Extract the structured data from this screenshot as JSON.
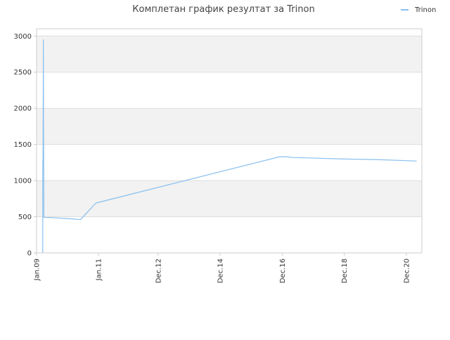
{
  "chart_data": {
    "type": "line",
    "title": "Комплетан график резултат за Trinon",
    "xlabel": "",
    "ylabel": "",
    "ylim": [
      0,
      3100
    ],
    "yticks": [
      0,
      500,
      1000,
      1500,
      2000,
      2500,
      3000
    ],
    "grid": true,
    "legend_position": "top-right",
    "x_axis": {
      "type": "date",
      "range": [
        "2009-01-01",
        "2021-06-01"
      ],
      "ticks": [
        {
          "date": "2009-01-01",
          "label": "Jan.09"
        },
        {
          "date": "2011-01-01",
          "label": "Jan.11"
        },
        {
          "date": "2012-12-01",
          "label": "Dec.12"
        },
        {
          "date": "2014-12-01",
          "label": "Dec.14"
        },
        {
          "date": "2016-12-01",
          "label": "Dec.16"
        },
        {
          "date": "2018-12-01",
          "label": "Dec.18"
        },
        {
          "date": "2020-12-01",
          "label": "Dec.20"
        }
      ]
    },
    "series": [
      {
        "name": "Trinon",
        "color": "#88bfee",
        "points": [
          {
            "x": "2009-03-15",
            "y": 0
          },
          {
            "x": "2009-03-15",
            "y": 1250
          },
          {
            "x": "2009-03-18",
            "y": 1280
          },
          {
            "x": "2009-03-20",
            "y": 2100
          },
          {
            "x": "2009-03-22",
            "y": 2950
          },
          {
            "x": "2009-03-24",
            "y": 1700
          },
          {
            "x": "2009-03-26",
            "y": 1300
          },
          {
            "x": "2009-03-28",
            "y": 490
          },
          {
            "x": "2009-06-01",
            "y": 490
          },
          {
            "x": "2010-03-01",
            "y": 470
          },
          {
            "x": "2010-06-01",
            "y": 460
          },
          {
            "x": "2010-12-01",
            "y": 690
          },
          {
            "x": "2016-11-01",
            "y": 1330
          },
          {
            "x": "2017-01-15",
            "y": 1330
          },
          {
            "x": "2017-04-01",
            "y": 1320
          },
          {
            "x": "2018-01-01",
            "y": 1310
          },
          {
            "x": "2018-11-01",
            "y": 1300
          },
          {
            "x": "2019-06-01",
            "y": 1295
          },
          {
            "x": "2020-01-01",
            "y": 1290
          },
          {
            "x": "2021-01-01",
            "y": 1275
          },
          {
            "x": "2021-04-01",
            "y": 1270
          }
        ]
      }
    ],
    "colors": {
      "band": "#f2f2f2",
      "gridline": "#dddddd",
      "axis": "#cccccc",
      "text": "#333333",
      "title": "#444444"
    }
  }
}
